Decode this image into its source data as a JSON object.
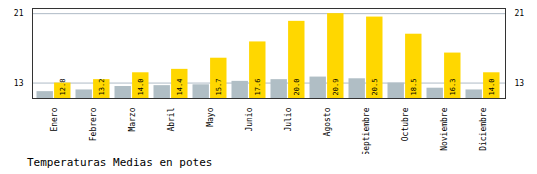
{
  "chart_data": {
    "type": "bar",
    "title": "Temperaturas Medias en potes",
    "categories": [
      "Enero",
      "Febrero",
      "Marzo",
      "Abril",
      "Mayo",
      "Junio",
      "Julio",
      "Agosto",
      "Septiembre",
      "Octubre",
      "Noviembre",
      "Diciembre"
    ],
    "series": [
      {
        "color": "#b0bec5",
        "values": [
          11.8,
          12.0,
          12.4,
          12.5,
          12.6,
          13.0,
          13.2,
          13.5,
          13.3,
          12.8,
          12.2,
          12.0
        ]
      },
      {
        "color": "#FFD700",
        "values": [
          12.8,
          13.2,
          14.0,
          14.4,
          15.7,
          17.6,
          20.0,
          20.9,
          20.5,
          18.5,
          16.3,
          14.0
        ],
        "value_labels": [
          "12.8",
          "13.2",
          "14.0",
          "14.4",
          "15.7",
          "17.6",
          "20.0",
          "20.9",
          "20.5",
          "18.5",
          "16.3",
          "14.0"
        ],
        "data_labels": true
      }
    ],
    "ylim": [
      11.0,
      21.5
    ],
    "yticks": [
      12.8,
      20.9
    ],
    "grid": true
  }
}
